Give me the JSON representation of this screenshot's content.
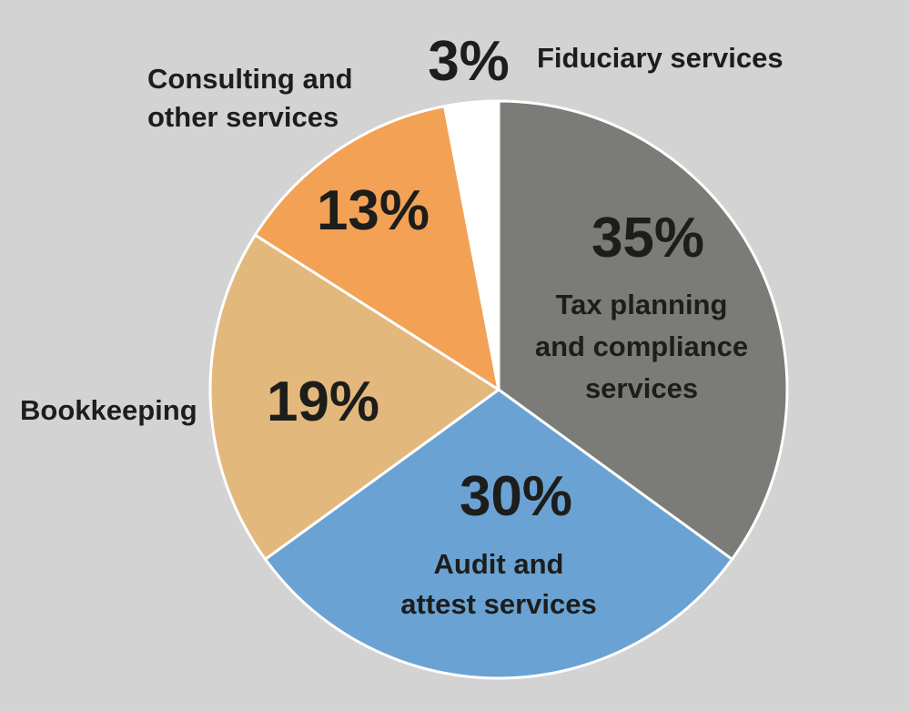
{
  "chart_data": {
    "type": "pie",
    "title": "",
    "start": "12 o'clock, clockwise",
    "slices": [
      {
        "label": "Tax planning and compliance services",
        "label_lines": [
          "Tax planning",
          "and compliance",
          "services"
        ],
        "value": 35,
        "value_label": "35%",
        "color": "#7b7b77",
        "label_position": "inside"
      },
      {
        "label": "Audit and attest services",
        "label_lines": [
          "Audit and",
          "attest services"
        ],
        "value": 30,
        "value_label": "30%",
        "color": "#6aa3d3",
        "label_position": "inside"
      },
      {
        "label": "Bookkeeping",
        "label_lines": [
          "Bookkeeping"
        ],
        "value": 19,
        "value_label": "19%",
        "color": "#e3b87c",
        "label_position": "outside-left"
      },
      {
        "label": "Consulting and other services",
        "label_lines": [
          "Consulting and",
          "other services"
        ],
        "value": 13,
        "value_label": "13%",
        "color": "#f2a155",
        "label_position": "outside-top-left"
      },
      {
        "label": "Fiduciary services",
        "label_lines": [
          "Fiduciary services"
        ],
        "value": 3,
        "value_label": "3%",
        "color": "#ffffff",
        "label_position": "outside-top"
      }
    ],
    "slice_border_color": "#ffffff",
    "background_color": "#d3d3d3",
    "legend": "none"
  }
}
